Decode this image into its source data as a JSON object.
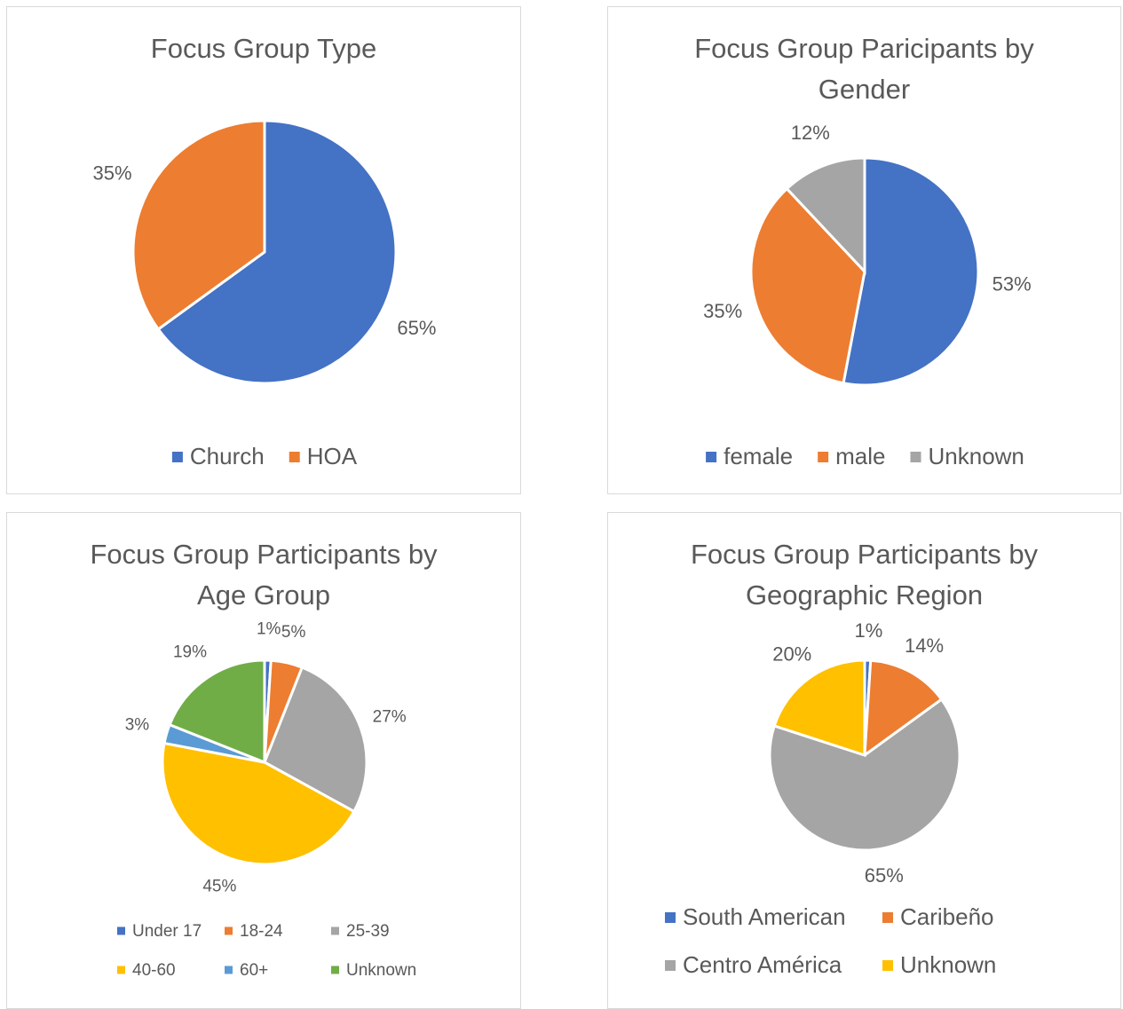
{
  "chart_data": [
    {
      "type": "pie",
      "title": "Focus Group Type",
      "categories": [
        "Church",
        "HOA"
      ],
      "values": [
        65,
        35
      ],
      "value_labels": [
        "65%",
        "35%"
      ],
      "colors": [
        "#4472c4",
        "#ed7d31"
      ],
      "legend": "bottom"
    },
    {
      "type": "pie",
      "title": "Focus Group Paricipants by Gender",
      "categories": [
        "female",
        "male",
        "Unknown"
      ],
      "values": [
        53,
        35,
        12
      ],
      "value_labels": [
        "53%",
        "35%",
        "12%"
      ],
      "colors": [
        "#4472c4",
        "#ed7d31",
        "#a5a5a5"
      ],
      "legend": "bottom"
    },
    {
      "type": "pie",
      "title": "Focus Group Participants by Age Group",
      "categories": [
        "Under 17",
        "18-24",
        "25-39",
        "40-60",
        "60+",
        "Unknown"
      ],
      "values": [
        1,
        5,
        27,
        45,
        3,
        19
      ],
      "value_labels": [
        "1%",
        "5%",
        "27%",
        "45%",
        "3%",
        "19%"
      ],
      "colors": [
        "#4472c4",
        "#ed7d31",
        "#a5a5a5",
        "#ffc000",
        "#5b9bd5",
        "#70ad47"
      ],
      "legend": "bottom"
    },
    {
      "type": "pie",
      "title": "Focus Group Participants by Geographic Region",
      "categories": [
        "South American",
        "Caribeño",
        "Centro América",
        "Unknown"
      ],
      "values": [
        1,
        14,
        65,
        20
      ],
      "value_labels": [
        "1%",
        "14%",
        "65%",
        "20%"
      ],
      "colors": [
        "#4472c4",
        "#ed7d31",
        "#a5a5a5",
        "#ffc000"
      ],
      "legend": "bottom"
    }
  ]
}
